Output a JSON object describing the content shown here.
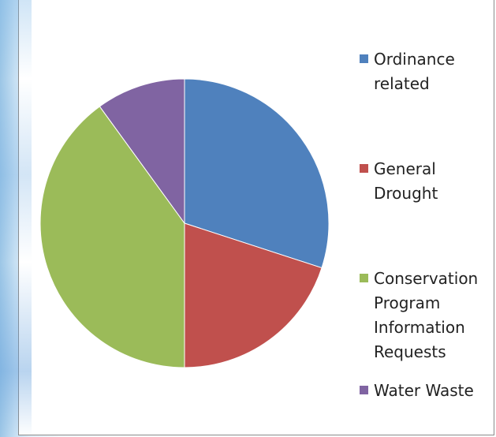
{
  "chart_data": {
    "type": "pie",
    "categories": [
      "Ordinance related",
      "General Drought",
      "Conservation Program Information Requests",
      "Water Waste"
    ],
    "legend_labels": [
      "Ordinance\nrelated",
      "General\nDrought",
      "Conservation\nProgram\nInformation\nRequests",
      "Water Waste"
    ],
    "values": [
      30,
      20,
      40,
      10
    ],
    "colors": [
      "#4f81bd",
      "#c0504d",
      "#9bbb59",
      "#8064a2"
    ],
    "legend_position": "right"
  }
}
